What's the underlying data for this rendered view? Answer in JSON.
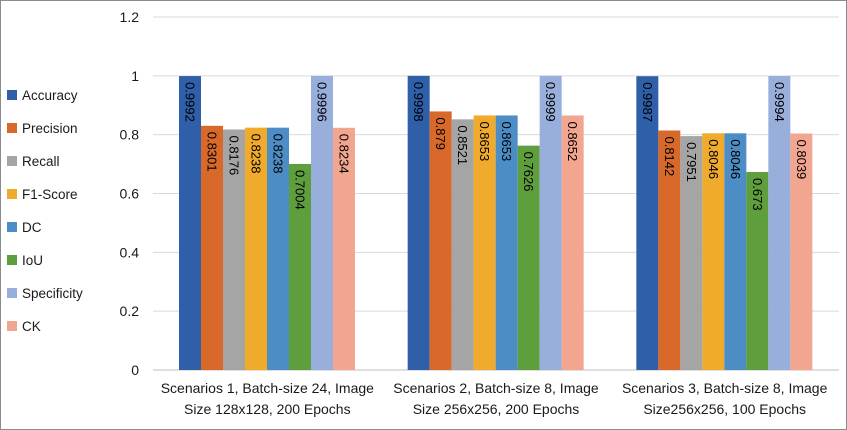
{
  "chart_data": {
    "type": "bar",
    "categories": [
      [
        "Scenarios 1, Batch-size 24, Image",
        "Size 128x128, 200 Epochs"
      ],
      [
        "Scenarios 2, Batch-size 8, Image",
        "Size 256x256, 200 Epochs"
      ],
      [
        "Scenarios 3, Batch-size 8, Image",
        "Size256x256, 100 Epochs"
      ]
    ],
    "series": [
      {
        "name": "Accuracy",
        "color": "#2e5fa8",
        "values": [
          0.9992,
          0.9998,
          0.9987
        ],
        "labels": [
          "0.9992",
          "0.9998",
          "0.9987"
        ]
      },
      {
        "name": "Precision",
        "color": "#d9692a",
        "values": [
          0.8301,
          0.879,
          0.8142
        ],
        "labels": [
          "0.8301",
          "0.879",
          "0.8142"
        ]
      },
      {
        "name": "Recall",
        "color": "#a5a5a5",
        "values": [
          0.8176,
          0.8521,
          0.7951
        ],
        "labels": [
          "0.8176",
          "0.8521",
          "0.7951"
        ]
      },
      {
        "name": "F1-Score",
        "color": "#f0aa2c",
        "values": [
          0.8238,
          0.8653,
          0.8046
        ],
        "labels": [
          "0.8238",
          "0.8653",
          "0.8046"
        ]
      },
      {
        "name": "DC",
        "color": "#4d8dc6",
        "values": [
          0.8238,
          0.8653,
          0.8046
        ],
        "labels": [
          "0.8238",
          "0.8653",
          "0.8046"
        ]
      },
      {
        "name": "IoU",
        "color": "#5f9e3c",
        "values": [
          0.7004,
          0.7626,
          0.673
        ],
        "labels": [
          "0.7004",
          "0.7626",
          "0.673"
        ]
      },
      {
        "name": "Specificity",
        "color": "#98aedb",
        "values": [
          0.9996,
          0.9999,
          0.9994
        ],
        "labels": [
          "0.9996",
          "0.9999",
          "0.9994"
        ]
      },
      {
        "name": "CK",
        "color": "#f2a58f",
        "values": [
          0.8234,
          0.8652,
          0.8039
        ],
        "labels": [
          "0.8234",
          "0.8652",
          "0.8039"
        ]
      }
    ],
    "yticks": [
      "0",
      "0.2",
      "0.4",
      "0.6",
      "0.8",
      "1",
      "1.2"
    ],
    "ylim": [
      0,
      1.2
    ],
    "grid": true,
    "legend_position": "left"
  }
}
